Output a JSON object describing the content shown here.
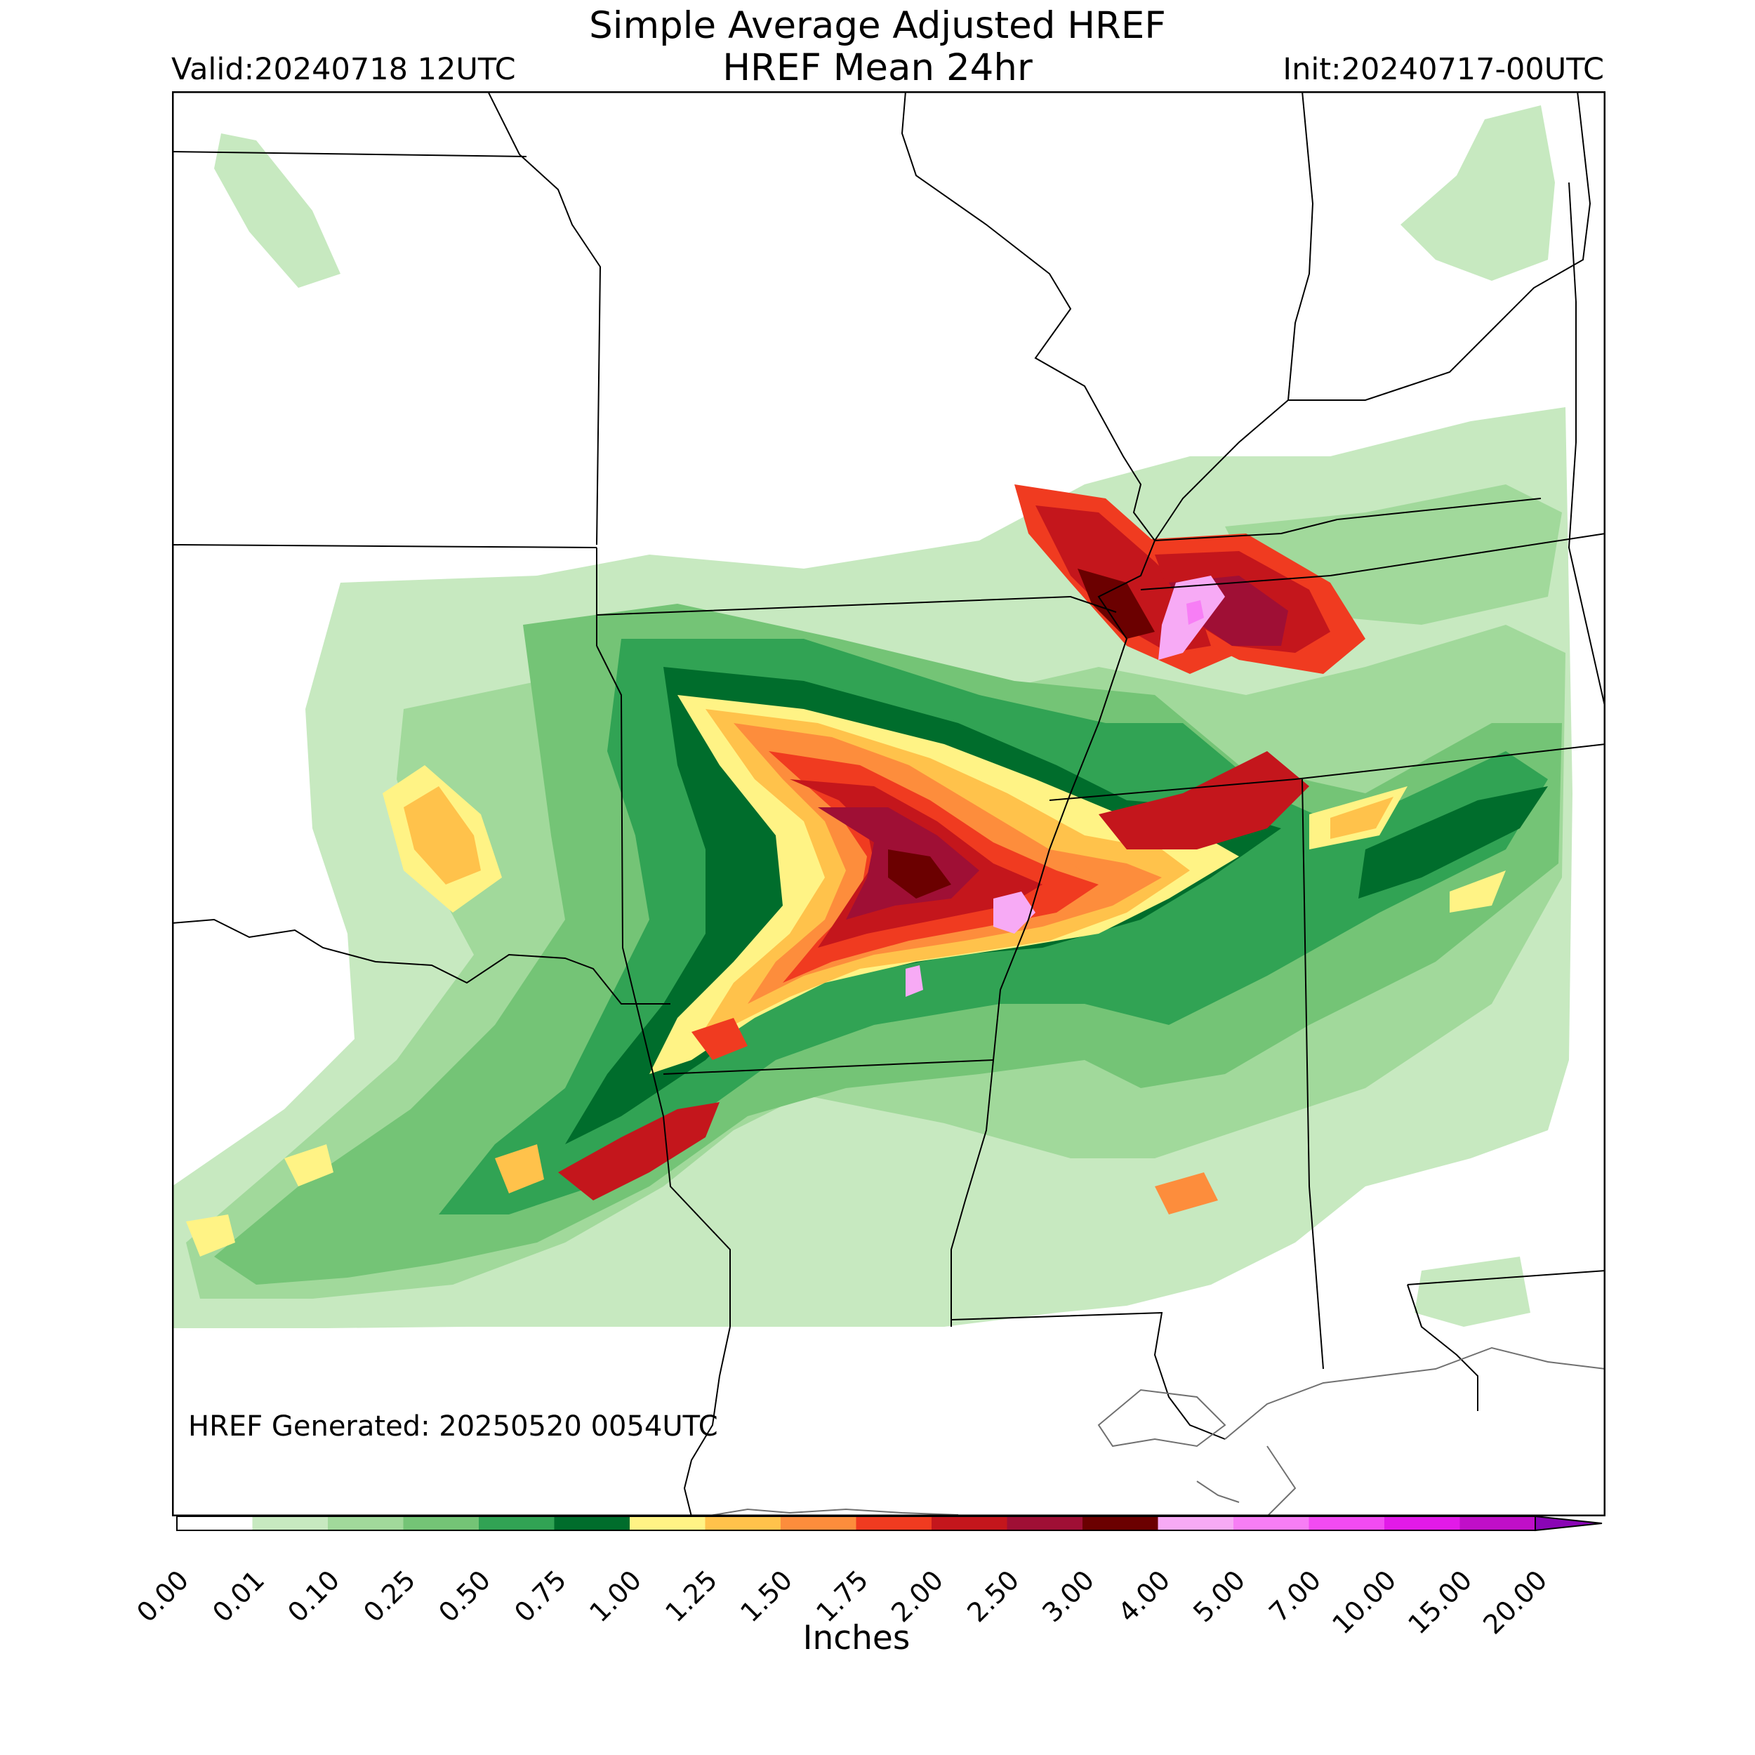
{
  "figure": {
    "title_line1": "Simple Average Adjusted HREF",
    "title_line2": "HREF Mean 24hr",
    "valid": "Valid:20240718 12UTC",
    "init": "Init:20240717-00UTC",
    "generated": "HREF Generated: 20250520 0054UTC"
  },
  "colorbar": {
    "label": "Inches",
    "ticks": [
      "0.00",
      "0.01",
      "0.10",
      "0.25",
      "0.50",
      "0.75",
      "1.00",
      "1.25",
      "1.50",
      "1.75",
      "2.00",
      "2.50",
      "3.00",
      "4.00",
      "5.00",
      "7.00",
      "10.00",
      "15.00",
      "20.00"
    ],
    "colors": [
      "#ffffff",
      "#c7e9c0",
      "#a1d99b",
      "#74c476",
      "#31a354",
      "#006d2c",
      "#fff385",
      "#ffc24b",
      "#fd8d3c",
      "#f03b20",
      "#c4161c",
      "#9f0f35",
      "#6b0000",
      "#f7aaf5",
      "#f77ef5",
      "#f24bf2",
      "#e21ae8",
      "#c00fc8",
      "#8a05b5"
    ],
    "extend": "max"
  },
  "colors": {
    "frame": "#000000",
    "state_border": "#000000",
    "coast": "#707070"
  }
}
